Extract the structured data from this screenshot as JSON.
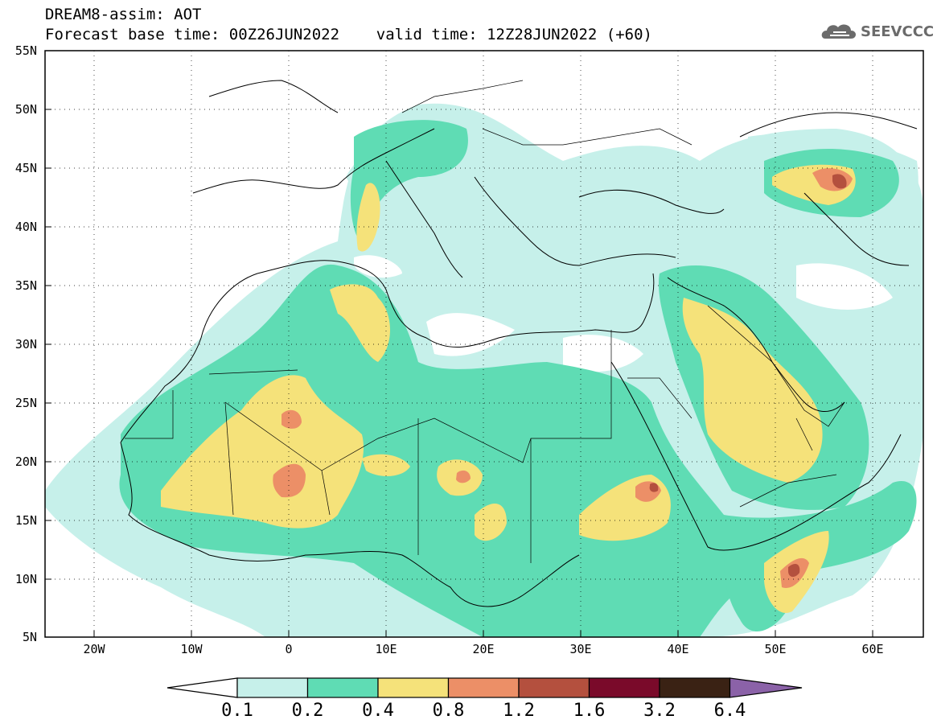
{
  "title": {
    "line1": "DREAM8-assim: AOT",
    "line2": "Forecast base time: 00Z26JUN2022    valid time: 12Z28JUN2022 (+60)"
  },
  "logo": {
    "text": "SEEVCCC",
    "icon": "cloud-icon"
  },
  "map": {
    "lon_range": [
      -25,
      65
    ],
    "lat_range": [
      5,
      55
    ],
    "lat_ticks": [
      "55N",
      "50N",
      "45N",
      "40N",
      "35N",
      "30N",
      "25N",
      "20N",
      "15N",
      "10N",
      "5N"
    ],
    "lon_ticks": [
      "20W",
      "10W",
      "0",
      "10E",
      "20E",
      "30E",
      "40E",
      "50E",
      "60E"
    ],
    "grid": "dotted"
  },
  "colorbar": {
    "labels": [
      "0.1",
      "0.2",
      "0.4",
      "0.8",
      "1.2",
      "1.6",
      "3.2",
      "6.4"
    ],
    "colors": [
      "#ffffff",
      "#c6f0ea",
      "#5fdcb4",
      "#f5e27a",
      "#ec8f67",
      "#b4503e",
      "#7a0a2a",
      "#3a2214",
      "#8b62a8"
    ]
  }
}
